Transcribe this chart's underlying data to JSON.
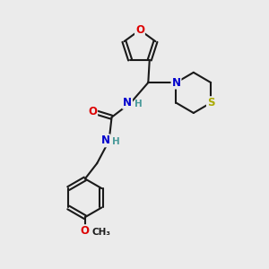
{
  "background_color": "#ebebeb",
  "bond_color": "#1a1a1a",
  "atom_colors": {
    "O": "#dd0000",
    "N": "#0000cc",
    "S": "#aaaa00",
    "C": "#1a1a1a",
    "H": "#4a9a9a"
  },
  "figsize": [
    3.0,
    3.0
  ],
  "dpi": 100
}
